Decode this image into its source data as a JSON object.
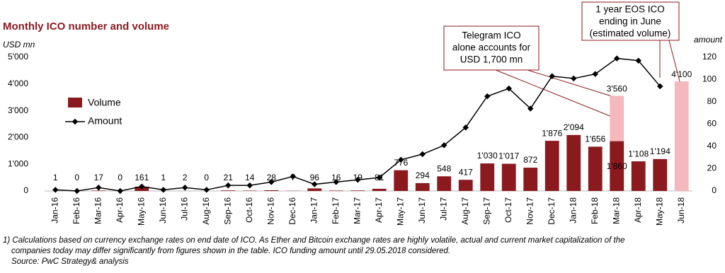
{
  "chart_data": {
    "type": "bar_line",
    "title": "Monthly ICO number and volume",
    "y_label": "USD mn",
    "y2_label": "amount",
    "categories": [
      "Jan-16",
      "Feb-16",
      "Mar-16",
      "Apr-16",
      "May-16",
      "Jun-16",
      "Jul-16",
      "Aug-16",
      "Sep-16",
      "Oct-16",
      "Nov-16",
      "Dec-16",
      "Jan-17",
      "Feb-17",
      "Mar-17",
      "Apr-17",
      "May-17",
      "Jun-17",
      "Jul-17",
      "Aug-17",
      "Sep-17",
      "Oct-17",
      "Nov-17",
      "Dec-17",
      "Jan-18",
      "Feb-18",
      "Mar-18",
      "Apr-18",
      "May-18",
      "Jun-18"
    ],
    "series": [
      {
        "name": "Volume",
        "type": "bar",
        "color": "#8b1a1f",
        "values": [
          1,
          0,
          17,
          0,
          161,
          1,
          2,
          0,
          21,
          14,
          28,
          7,
          96,
          16,
          19,
          81,
          776,
          294,
          548,
          417,
          1030,
          1017,
          872,
          1876,
          2094,
          1656,
          1860,
          1108,
          1194,
          null
        ],
        "value_labels": [
          "1",
          "0",
          "17",
          "0",
          "161",
          "1",
          "2",
          "0",
          "21",
          "14",
          "28",
          "7",
          "96",
          "16",
          "19",
          "81",
          "776",
          "294",
          "548",
          "417",
          "1'030",
          "1'017",
          "872",
          "1'876",
          "2'094",
          "1'656",
          "1'860",
          "1'108",
          "1'194",
          null
        ]
      },
      {
        "name": "Amount",
        "type": "line",
        "axis": "y2",
        "color": "#000000",
        "values": [
          1,
          0,
          3,
          0,
          4,
          1,
          3,
          1,
          5,
          5,
          8,
          13,
          6,
          8,
          10,
          12,
          28,
          33,
          41,
          57,
          85,
          92,
          74,
          103,
          101,
          105,
          119,
          117,
          94,
          null
        ]
      }
    ],
    "highlight": {
      "color": "#f4b8bd",
      "values": [
        null,
        null,
        null,
        null,
        null,
        null,
        null,
        null,
        null,
        null,
        null,
        null,
        null,
        null,
        null,
        null,
        null,
        null,
        null,
        null,
        null,
        null,
        null,
        null,
        null,
        null,
        3560,
        null,
        null,
        4100
      ],
      "value_labels": [
        null,
        null,
        null,
        null,
        null,
        null,
        null,
        null,
        null,
        null,
        null,
        null,
        null,
        null,
        null,
        null,
        null,
        null,
        null,
        null,
        null,
        null,
        null,
        null,
        null,
        null,
        "3'560",
        null,
        null,
        "4'100"
      ]
    },
    "ylim": [
      0,
      5000
    ],
    "yticks": [
      0,
      {
        "value": 1000,
        "label": "1'000"
      },
      {
        "value": 2000,
        "label": "2'000"
      },
      {
        "value": 3000,
        "label": "3'000"
      },
      {
        "value": 4000,
        "label": "4'000"
      },
      {
        "value": 5000,
        "label": "5'000"
      }
    ],
    "y2lim": [
      0,
      120
    ],
    "y2ticks": [
      0,
      20,
      40,
      60,
      80,
      100,
      120
    ],
    "annotations": [
      {
        "lines": [
          "Telegram ICO",
          "alone accounts for",
          "USD 1,700 mn"
        ]
      },
      {
        "lines": [
          "1 year EOS ICO",
          "ending in June",
          "(estimated volume)"
        ]
      }
    ],
    "footnote": [
      "1) Calculations based on currency exchange rates on end date of ICO. As Ether and Bitcoin exchange rates are highly volatile, actual and current market capitalization of the",
      "companies today may differ significantly from figures shown in the table. ICO funding amount until 29.05.2018 considered.",
      "Source: PwC Strategy& analysis"
    ]
  }
}
